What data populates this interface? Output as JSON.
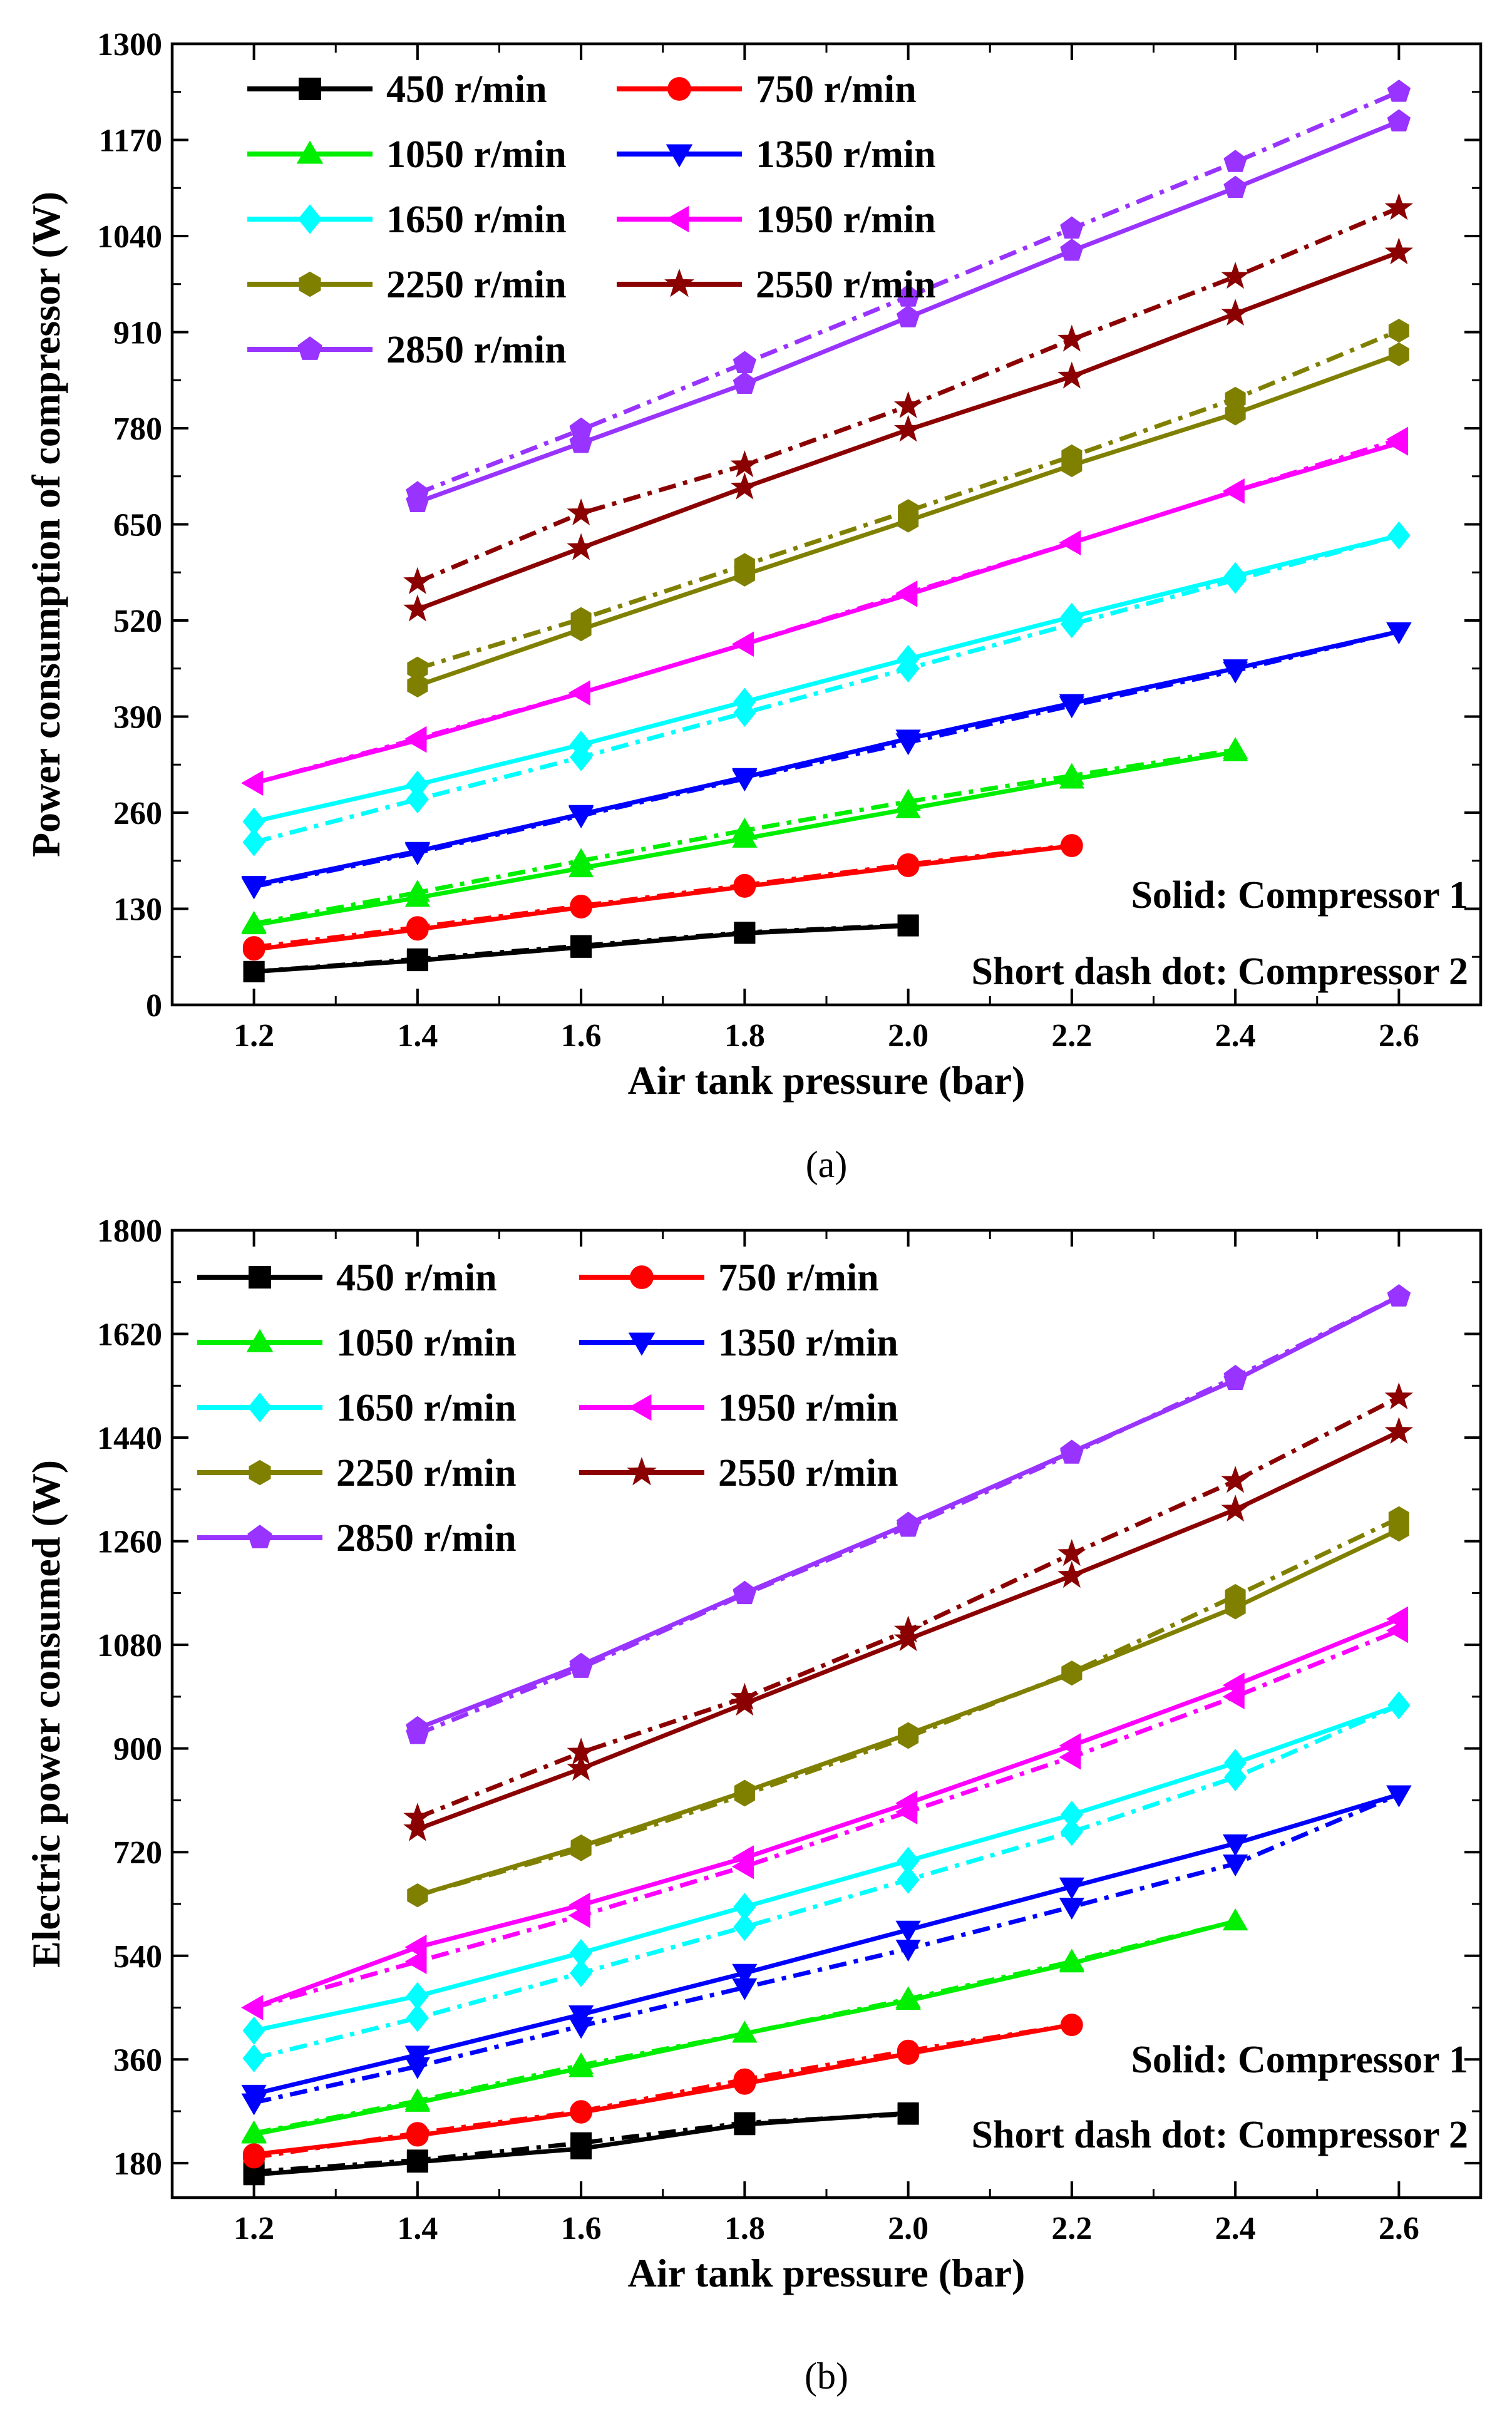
{
  "chart_data": [
    {
      "type": "line",
      "panel": "(a)",
      "xlabel": "Air tank pressure (bar)",
      "ylabel": "Power consumption of compressor (W)",
      "xlim": [
        1.1,
        2.7
      ],
      "ylim": [
        0,
        1300
      ],
      "xticks": [
        1.2,
        1.4,
        1.6,
        1.8,
        2.0,
        2.2,
        2.4,
        2.6
      ],
      "xtick_labels": [
        "1.2",
        "1.4",
        "1.6",
        "1.8",
        "2.0",
        "2.2",
        "2.4",
        "2.6"
      ],
      "yticks": [
        0,
        130,
        260,
        390,
        520,
        650,
        780,
        910,
        1040,
        1170,
        1300
      ],
      "ytick_labels": [
        "0",
        "130",
        "260",
        "390",
        "520",
        "650",
        "780",
        "910",
        "1040",
        "1170",
        "1300"
      ],
      "annotations": [
        "Solid: Compressor 1",
        "Short dash dot: Compressor 2"
      ],
      "series": [
        {
          "name": "450 r/min",
          "color": "#000000",
          "marker": "square",
          "x": [
            1.2,
            1.4,
            1.6,
            1.8,
            2.0
          ],
          "solid": [
            45,
            60,
            78,
            97,
            107
          ],
          "dashdot": [
            45,
            62,
            80,
            98,
            108
          ]
        },
        {
          "name": "750 r/min",
          "color": "#ff0000",
          "marker": "circle",
          "x": [
            1.2,
            1.4,
            1.6,
            1.8,
            2.0,
            2.2
          ],
          "solid": [
            75,
            102,
            132,
            160,
            188,
            215
          ],
          "dashdot": [
            78,
            105,
            134,
            162,
            190,
            216
          ]
        },
        {
          "name": "1050 r/min",
          "color": "#00ee00",
          "marker": "triangle-up",
          "x": [
            1.2,
            1.4,
            1.6,
            1.8,
            2.0,
            2.2,
            2.4
          ],
          "solid": [
            108,
            145,
            185,
            225,
            265,
            305,
            342
          ],
          "dashdot": [
            110,
            152,
            195,
            236,
            275,
            310,
            345
          ]
        },
        {
          "name": "1350 r/min",
          "color": "#0000ff",
          "marker": "triangle-down",
          "x": [
            1.2,
            1.4,
            1.6,
            1.8,
            2.0,
            2.2,
            2.4,
            2.6
          ],
          "solid": [
            162,
            208,
            258,
            308,
            360,
            408,
            455,
            505
          ],
          "dashdot": [
            160,
            206,
            256,
            306,
            355,
            405,
            452,
            505
          ]
        },
        {
          "name": "1650 r/min",
          "color": "#00ffff",
          "marker": "diamond",
          "x": [
            1.2,
            1.4,
            1.6,
            1.8,
            2.0,
            2.2,
            2.4,
            2.6
          ],
          "solid": [
            248,
            298,
            352,
            410,
            468,
            525,
            580,
            635
          ],
          "dashdot": [
            220,
            278,
            335,
            395,
            455,
            515,
            575,
            635
          ]
        },
        {
          "name": "1950 r/min",
          "color": "#ff00ff",
          "marker": "triangle-left",
          "x": [
            1.2,
            1.4,
            1.6,
            1.8,
            2.0,
            2.2,
            2.4,
            2.6
          ],
          "solid": [
            300,
            358,
            422,
            488,
            555,
            625,
            695,
            760
          ],
          "dashdot": [
            300,
            360,
            422,
            488,
            557,
            625,
            695,
            765
          ]
        },
        {
          "name": "2250 r/min",
          "color": "#808000",
          "marker": "hexagon",
          "x": [
            1.4,
            1.6,
            1.8,
            2.0,
            2.2,
            2.4,
            2.6
          ],
          "solid": [
            432,
            508,
            582,
            655,
            730,
            800,
            880
          ],
          "dashdot": [
            455,
            522,
            595,
            668,
            742,
            820,
            912
          ]
        },
        {
          "name": "2550 r/min",
          "color": "#8b0000",
          "marker": "star",
          "x": [
            1.4,
            1.6,
            1.8,
            2.0,
            2.2,
            2.4,
            2.6
          ],
          "solid": [
            535,
            618,
            700,
            778,
            850,
            935,
            1018
          ],
          "dashdot": [
            572,
            665,
            730,
            810,
            900,
            985,
            1078
          ]
        },
        {
          "name": "2850 r/min",
          "color": "#9933ff",
          "marker": "pentagon",
          "x": [
            1.4,
            1.6,
            1.8,
            2.0,
            2.2,
            2.4,
            2.6
          ],
          "solid": [
            680,
            760,
            840,
            930,
            1020,
            1105,
            1195
          ],
          "dashdot": [
            692,
            778,
            868,
            958,
            1050,
            1140,
            1235
          ]
        }
      ]
    },
    {
      "type": "line",
      "panel": "(b)",
      "xlabel": "Air tank pressure (bar)",
      "ylabel": "Electric power consumed (W)",
      "xlim": [
        1.1,
        2.7
      ],
      "ylim": [
        120,
        1800
      ],
      "xticks": [
        1.2,
        1.4,
        1.6,
        1.8,
        2.0,
        2.2,
        2.4,
        2.6
      ],
      "xtick_labels": [
        "1.2",
        "1.4",
        "1.6",
        "1.8",
        "2.0",
        "2.2",
        "2.4",
        "2.6"
      ],
      "yticks": [
        180,
        360,
        540,
        720,
        900,
        1080,
        1260,
        1440,
        1620,
        1800
      ],
      "ytick_labels": [
        "180",
        "360",
        "540",
        "720",
        "900",
        "1080",
        "1260",
        "1440",
        "1620",
        "1800"
      ],
      "annotations": [
        "Solid: Compressor 1",
        "Short dash dot: Compressor 2"
      ],
      "series": [
        {
          "name": "450 r/min",
          "color": "#000000",
          "marker": "square",
          "x": [
            1.2,
            1.4,
            1.6,
            1.8,
            2.0
          ],
          "solid": [
            160,
            182,
            205,
            247,
            267
          ],
          "dashdot": [
            165,
            185,
            215,
            250,
            265
          ]
        },
        {
          "name": "750 r/min",
          "color": "#ff0000",
          "marker": "circle",
          "x": [
            1.2,
            1.4,
            1.6,
            1.8,
            2.0,
            2.2
          ],
          "solid": [
            195,
            228,
            268,
            318,
            370,
            420
          ],
          "dashdot": [
            190,
            232,
            270,
            325,
            375,
            420
          ]
        },
        {
          "name": "1050 r/min",
          "color": "#00ee00",
          "marker": "triangle-up",
          "x": [
            1.2,
            1.4,
            1.6,
            1.8,
            2.0,
            2.2,
            2.4
          ],
          "solid": [
            230,
            285,
            345,
            405,
            462,
            527,
            600
          ],
          "dashdot": [
            232,
            288,
            350,
            405,
            465,
            530,
            600
          ]
        },
        {
          "name": "1350 r/min",
          "color": "#0000ff",
          "marker": "triangle-down",
          "x": [
            1.2,
            1.4,
            1.6,
            1.8,
            2.0,
            2.2,
            2.4,
            2.6
          ],
          "solid": [
            300,
            368,
            438,
            510,
            585,
            660,
            735,
            820
          ],
          "dashdot": [
            285,
            348,
            418,
            485,
            552,
            625,
            700,
            820
          ]
        },
        {
          "name": "1650 r/min",
          "color": "#00ffff",
          "marker": "diamond",
          "x": [
            1.2,
            1.4,
            1.6,
            1.8,
            2.0,
            2.2,
            2.4,
            2.6
          ],
          "solid": [
            410,
            470,
            545,
            625,
            705,
            785,
            875,
            975
          ],
          "dashdot": [
            362,
            432,
            510,
            590,
            672,
            755,
            850,
            975
          ]
        },
        {
          "name": "1950 r/min",
          "color": "#ff00ff",
          "marker": "triangle-left",
          "x": [
            1.2,
            1.4,
            1.6,
            1.8,
            2.0,
            2.2,
            2.4,
            2.6
          ],
          "solid": [
            450,
            555,
            628,
            710,
            805,
            905,
            1010,
            1125
          ],
          "dashdot": [
            450,
            530,
            610,
            695,
            790,
            885,
            990,
            1105
          ]
        },
        {
          "name": "2250 r/min",
          "color": "#808000",
          "marker": "hexagon",
          "x": [
            1.4,
            1.6,
            1.8,
            2.0,
            2.2,
            2.4,
            2.6
          ],
          "solid": [
            645,
            730,
            825,
            925,
            1030,
            1145,
            1280
          ],
          "dashdot": [
            645,
            725,
            820,
            920,
            1032,
            1165,
            1300
          ]
        },
        {
          "name": "2550 r/min",
          "color": "#8b0000",
          "marker": "star",
          "x": [
            1.4,
            1.6,
            1.8,
            2.0,
            2.2,
            2.4,
            2.6
          ],
          "solid": [
            760,
            865,
            978,
            1090,
            1200,
            1315,
            1450
          ],
          "dashdot": [
            780,
            893,
            988,
            1105,
            1238,
            1365,
            1510
          ]
        },
        {
          "name": "2850 r/min",
          "color": "#9933ff",
          "marker": "pentagon",
          "x": [
            1.4,
            1.6,
            1.8,
            2.0,
            2.2,
            2.4,
            2.6
          ],
          "solid": [
            935,
            1045,
            1170,
            1290,
            1415,
            1540,
            1685
          ],
          "dashdot": [
            925,
            1040,
            1168,
            1285,
            1412,
            1545,
            1685
          ]
        }
      ]
    }
  ]
}
